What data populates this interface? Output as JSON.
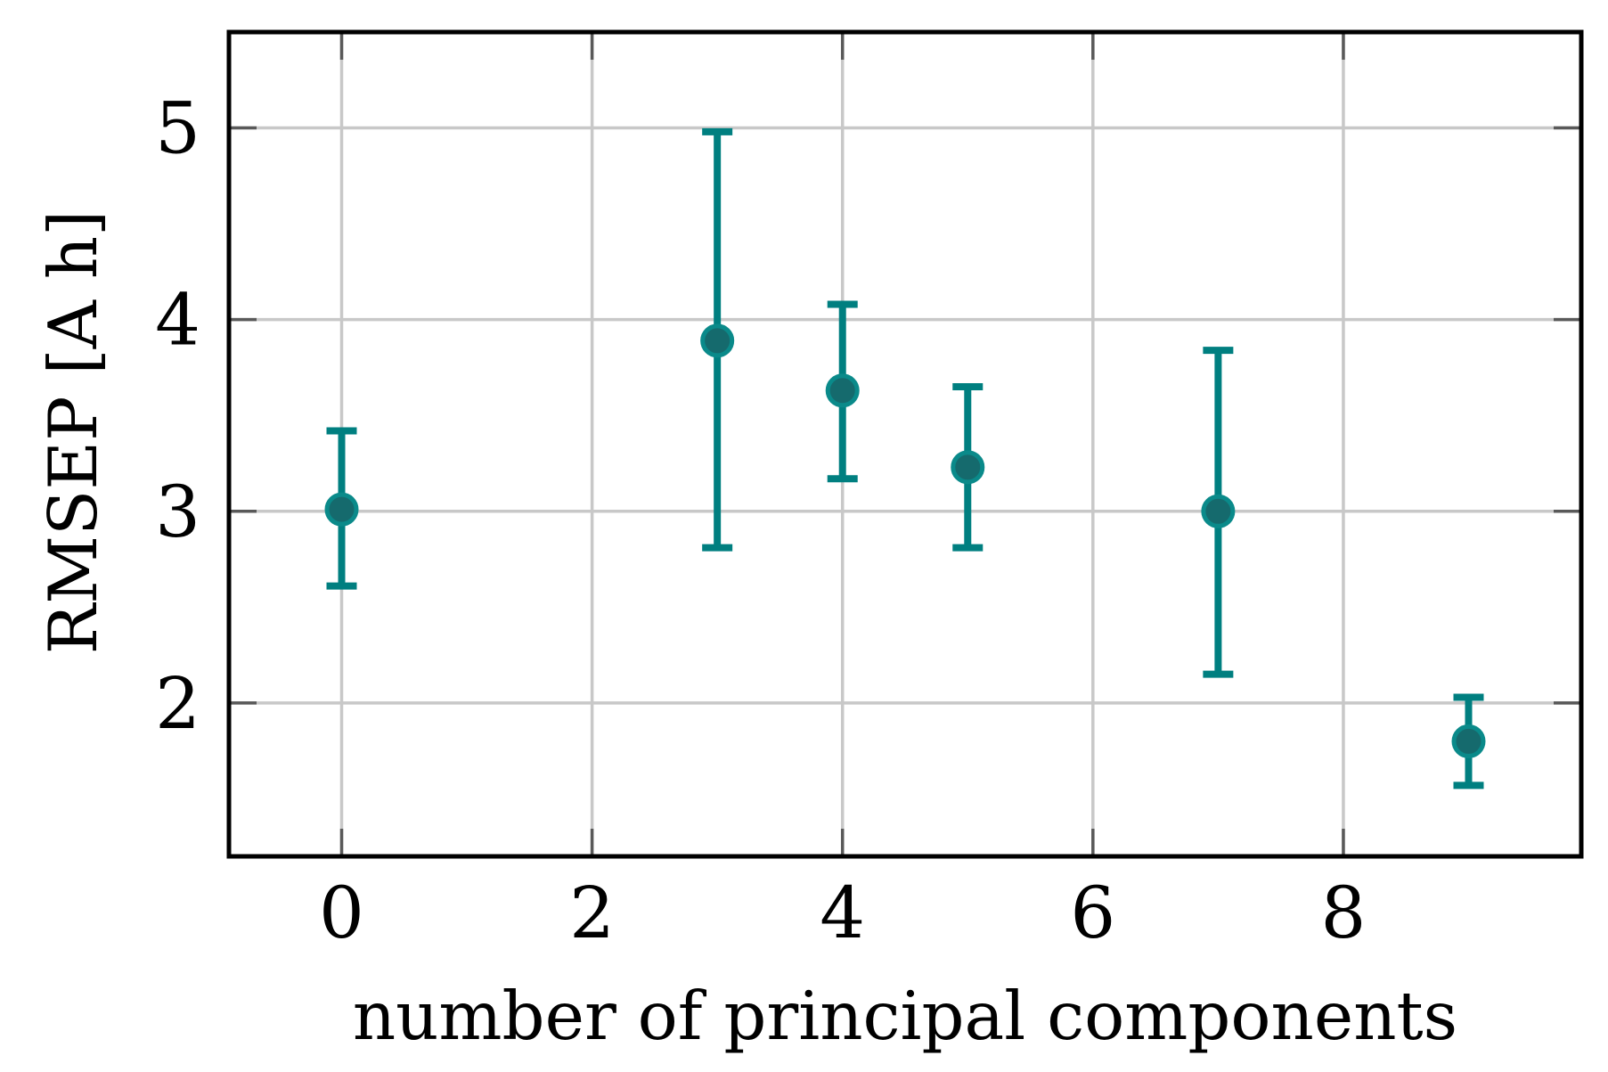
{
  "figure": {
    "background": "#ffffff",
    "description": "Scatter plot with vertical error bars showing RMSEP versus number of principal components"
  },
  "chart_data": {
    "type": "scatter",
    "title": "",
    "xlabel": "number of principal components",
    "ylabel": "RMSEP [A h]",
    "xlim": [
      -0.9,
      9.9
    ],
    "ylim": [
      1.2,
      5.5
    ],
    "xticks": [
      0,
      2,
      4,
      6,
      8
    ],
    "yticks": [
      2,
      3,
      4,
      5
    ],
    "grid": true,
    "legend": "none",
    "points": [
      {
        "x": 0,
        "y": 3.01,
        "y_low": 2.61,
        "y_high": 3.42
      },
      {
        "x": 3,
        "y": 3.89,
        "y_low": 2.81,
        "y_high": 4.98
      },
      {
        "x": 4,
        "y": 3.63,
        "y_low": 3.17,
        "y_high": 4.08
      },
      {
        "x": 5,
        "y": 3.23,
        "y_low": 2.81,
        "y_high": 3.65
      },
      {
        "x": 7,
        "y": 3.0,
        "y_low": 2.15,
        "y_high": 3.84
      },
      {
        "x": 9,
        "y": 1.8,
        "y_low": 1.57,
        "y_high": 2.03
      }
    ],
    "colors": {
      "errorbar": "#007f80",
      "marker_fill": "#156a6d",
      "marker_edge": "#0a8a8a",
      "grid": "#c8c8c8",
      "tick": "#595959",
      "border": "#000000",
      "text": "#000000"
    }
  }
}
